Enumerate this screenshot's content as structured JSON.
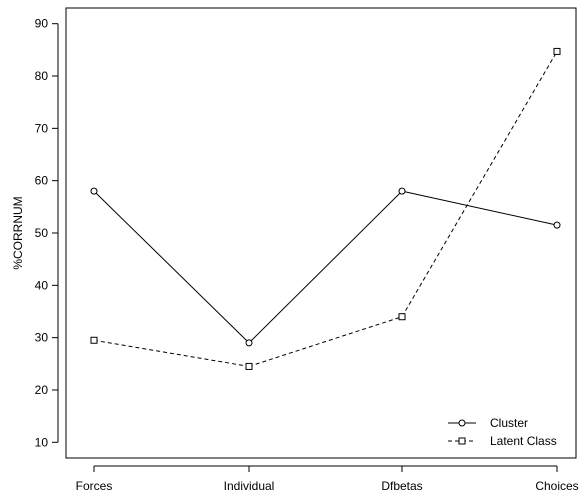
{
  "chart_data": {
    "type": "line",
    "title": "",
    "xlabel": "",
    "ylabel": "%CORRNUM",
    "categories": [
      "Forces",
      "Individual",
      "Dfbetas",
      "Choices"
    ],
    "ylim": [
      7,
      93
    ],
    "yticks": [
      10,
      20,
      30,
      40,
      50,
      60,
      70,
      80,
      90
    ],
    "grid": false,
    "legend_position": "bottom-right",
    "series": [
      {
        "name": "Cluster",
        "values": [
          58,
          29,
          58,
          51.5
        ],
        "marker": "circle",
        "line_style": "solid",
        "color": "#000000"
      },
      {
        "name": "Latent Class",
        "values": [
          29.5,
          24.5,
          34,
          84.7
        ],
        "marker": "square",
        "line_style": "dashed",
        "color": "#000000"
      }
    ]
  }
}
